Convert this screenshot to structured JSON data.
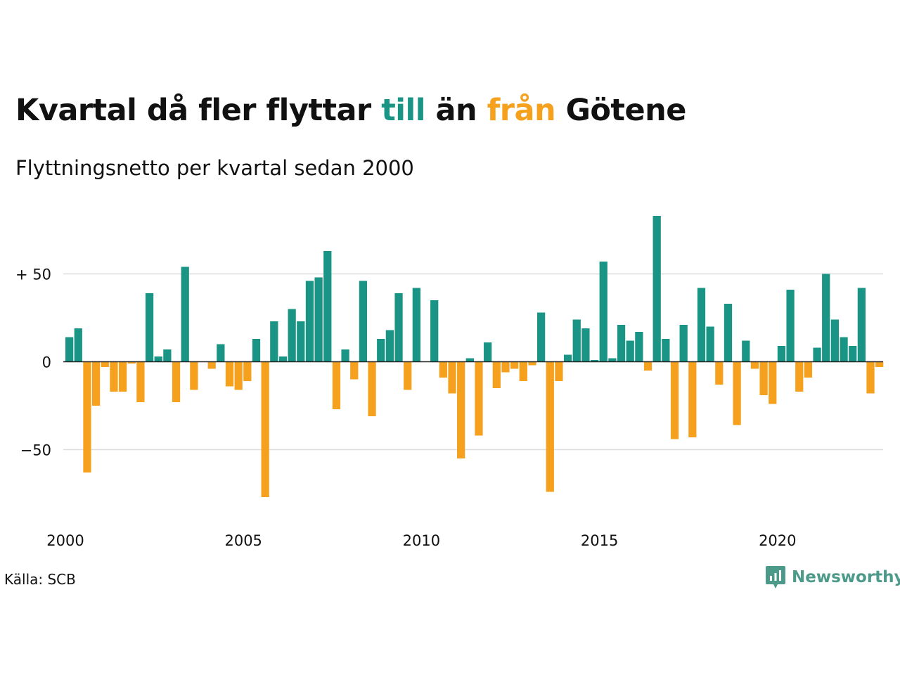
{
  "title": {
    "part1": "Kvartal då fler flyttar ",
    "part2": "till",
    "part3": " än ",
    "part4": "från",
    "part5": " Götene"
  },
  "subtitle": "Flyttningsnetto per kvartal sedan 2000",
  "source": "Källa: SCB",
  "logo_text": "Newsworthy",
  "colors": {
    "positive": "#1a9585",
    "negative": "#f5a11e",
    "grid": "#dddddd",
    "logo": "#4c9a8a"
  },
  "chart_data": {
    "type": "bar",
    "ylim": [
      -88,
      88
    ],
    "yticks": [
      {
        "value": 50,
        "label": "+ 50"
      },
      {
        "value": 0,
        "label": "0"
      },
      {
        "value": -50,
        "label": "−50"
      }
    ],
    "xticks": [
      {
        "year": 2000,
        "label": "2000"
      },
      {
        "year": 2005,
        "label": "2005"
      },
      {
        "year": 2010,
        "label": "2010"
      },
      {
        "year": 2015,
        "label": "2015"
      },
      {
        "year": 2020,
        "label": "2020"
      }
    ],
    "start_year": 2000,
    "grid": true,
    "values": [
      14,
      19,
      -63,
      -25,
      -3,
      -17,
      -17,
      -1,
      -23,
      39,
      3,
      7,
      -23,
      54,
      -16,
      0,
      -4,
      10,
      -14,
      -16,
      -11,
      13,
      -77,
      23,
      3,
      30,
      23,
      46,
      48,
      63,
      -27,
      7,
      -10,
      46,
      -31,
      13,
      18,
      39,
      -16,
      42,
      0,
      35,
      -9,
      -18,
      -55,
      2,
      -42,
      11,
      -15,
      -6,
      -4,
      -11,
      -2,
      28,
      -74,
      -11,
      4,
      24,
      19,
      1,
      57,
      2,
      21,
      12,
      17,
      -5,
      83,
      13,
      -44,
      21,
      -43,
      42,
      20,
      -13,
      33,
      -36,
      12,
      -4,
      -19,
      -24,
      9,
      41,
      -17,
      -9,
      8,
      50,
      24,
      14,
      9,
      42,
      -18,
      -3
    ]
  }
}
